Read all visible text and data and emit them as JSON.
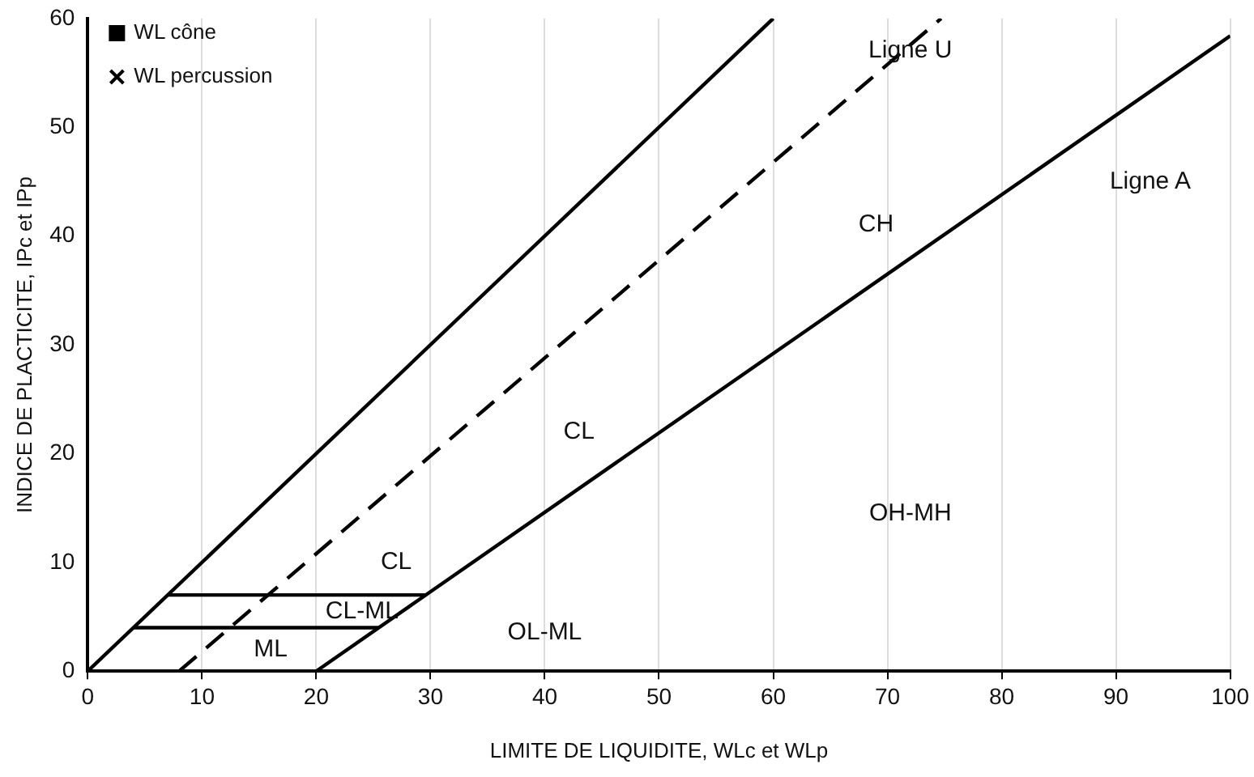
{
  "chart_data": {
    "type": "line",
    "xlabel": "LIMITE DE LIQUIDITE, WLc et WLp",
    "ylabel": "INDICE DE PLACTICITE, IPc et IPp",
    "xlim": [
      0,
      100
    ],
    "xticks": [
      0,
      10,
      20,
      30,
      40,
      50,
      60,
      70,
      80,
      90,
      100
    ],
    "ylim": [
      0,
      60
    ],
    "yticks": [
      0,
      10,
      20,
      30,
      40,
      50,
      60
    ],
    "grid": "x",
    "legend": "top left",
    "marker": "none",
    "series": [
      {
        "color": "#000000",
        "x": [
          0,
          60
        ],
        "values": [
          0,
          60
        ],
        "line_style": "solid"
      },
      {
        "color": "#000000",
        "x": [
          8,
          74.7
        ],
        "values": [
          0,
          60
        ],
        "line_style": "dashed"
      },
      {
        "color": "#000000",
        "x": [
          20,
          100
        ],
        "values": [
          0,
          58.4
        ],
        "line_style": "solid"
      },
      {
        "color": "#000000",
        "x": [
          7,
          29.6
        ],
        "values": [
          7,
          7
        ],
        "line_style": "solid"
      },
      {
        "color": "#000000",
        "x": [
          4,
          25.5
        ],
        "values": [
          4,
          4
        ],
        "line_style": "solid"
      },
      {
        "type": "scatter",
        "name": "WL cône",
        "color": "#000000",
        "marker": "square"
      },
      {
        "type": "scatter",
        "name": "WL percussion",
        "color": "#000000",
        "marker": "cross"
      }
    ],
    "annotations": [
      {
        "text": "Ligne U",
        "x": 72,
        "y": 57
      },
      "Ligne A",
      "CH",
      "CL",
      "CL",
      "CL-ML",
      "ML",
      "OL-ML",
      "OH-MH"
    ]
  }
}
